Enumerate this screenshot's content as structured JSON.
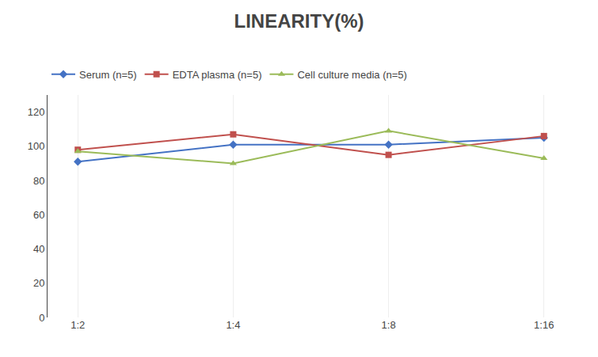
{
  "chart_data": {
    "type": "line",
    "title": "LINEARITY(%)",
    "categories": [
      "1:2",
      "1:4",
      "1:8",
      "1:16"
    ],
    "series": [
      {
        "name": "Serum (n=5)",
        "color": "#4472C4",
        "marker": "diamond",
        "values": [
          91,
          101,
          101,
          105
        ]
      },
      {
        "name": "EDTA plasma (n=5)",
        "color": "#C0504D",
        "marker": "square",
        "values": [
          98,
          107,
          95,
          106
        ]
      },
      {
        "name": "Cell culture media (n=5)",
        "color": "#9BBB59",
        "marker": "triangle-up",
        "values": [
          97,
          90,
          109,
          93
        ]
      }
    ],
    "ylim": [
      0,
      130
    ],
    "yticks": [
      0,
      20,
      40,
      60,
      80,
      100,
      120
    ],
    "grid": "x",
    "legend": "upper left"
  }
}
